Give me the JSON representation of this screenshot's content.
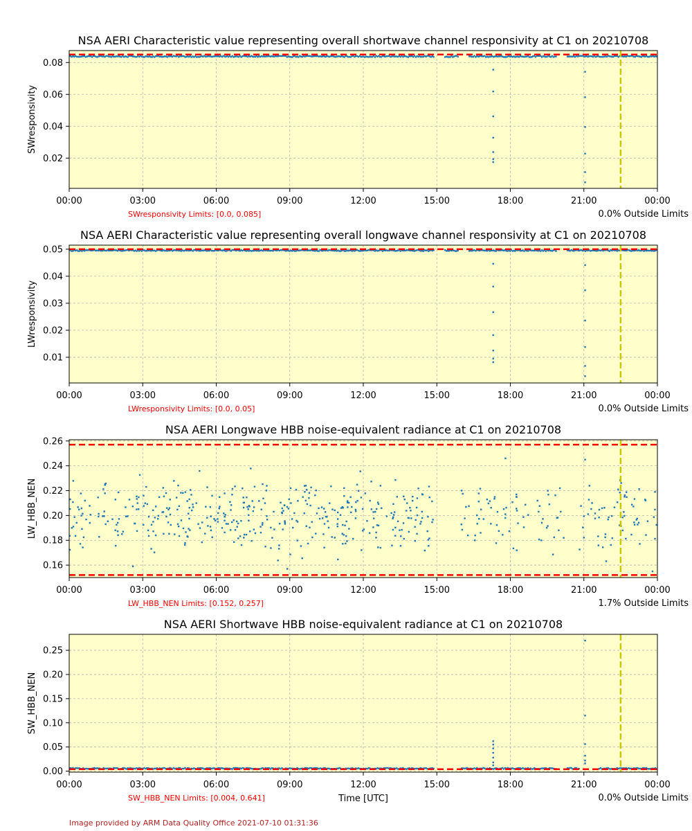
{
  "figure": {
    "xlabel": "Time [UTC]",
    "credit": "Image provided by ARM Data Quality Office 2021-07-10 01:31:36"
  },
  "colors": {
    "background": "#ffffcc",
    "points": "#1f77b4",
    "limit_line": "#ff0000",
    "marker_line": "#c8c800",
    "grid": "#b0b0b0",
    "limit_text": "#ff0000",
    "credit_text": "#b22222"
  },
  "chart_data": [
    {
      "type": "scatter",
      "title": "NSA AERI Characteristic value representing overall shortwave channel responsivity at C1 on 20210708",
      "ylabel": "SWresponsivity",
      "xlim": [
        0,
        24
      ],
      "ylim": [
        0.001,
        0.0875
      ],
      "x_tick_labels": [
        "00:00",
        "03:00",
        "06:00",
        "09:00",
        "12:00",
        "15:00",
        "18:00",
        "21:00",
        "00:00"
      ],
      "y_ticks": [
        0.02,
        0.04,
        0.06,
        0.08
      ],
      "y_tick_labels": [
        "0.02",
        "0.04",
        "0.06",
        "0.08"
      ],
      "limits": [
        0.0,
        0.085
      ],
      "limits_text": "SWresponsivity Limits: [0.0, 0.085]",
      "outside_text": "0.0% Outside Limits",
      "marker_x": 22.5,
      "grid": true,
      "baseline": 0.0838,
      "baseline_jitter": 0.0004,
      "baseline_gaps": [
        [
          14.9,
          15.3
        ],
        [
          15.9,
          16.3
        ],
        [
          19.9,
          20.3
        ]
      ],
      "outliers": [
        [
          17.3,
          0.0755
        ],
        [
          17.3,
          0.0618
        ],
        [
          17.3,
          0.0462
        ],
        [
          17.3,
          0.0328
        ],
        [
          17.3,
          0.0238
        ],
        [
          17.3,
          0.0193
        ],
        [
          17.3,
          0.0175
        ],
        [
          21.05,
          0.0742
        ],
        [
          21.05,
          0.0582
        ],
        [
          21.05,
          0.0395
        ],
        [
          21.05,
          0.0228
        ],
        [
          21.05,
          0.0112
        ],
        [
          21.05,
          0.0048
        ]
      ],
      "noise": null
    },
    {
      "type": "scatter",
      "title": "NSA AERI Characteristic value representing overall longwave channel responsivity at C1 on 20210708",
      "ylabel": "LWresponsivity",
      "xlim": [
        0,
        24
      ],
      "ylim": [
        0.0005,
        0.0515
      ],
      "x_tick_labels": [
        "00:00",
        "03:00",
        "06:00",
        "09:00",
        "12:00",
        "15:00",
        "18:00",
        "21:00",
        "00:00"
      ],
      "y_ticks": [
        0.01,
        0.02,
        0.03,
        0.04,
        0.05
      ],
      "y_tick_labels": [
        "0.01",
        "0.02",
        "0.03",
        "0.04",
        "0.05"
      ],
      "limits": [
        0.0,
        0.05
      ],
      "limits_text": "LWresponsivity Limits: [0.0, 0.05]",
      "outside_text": "0.0% Outside Limits",
      "marker_x": 22.5,
      "grid": true,
      "baseline": 0.0495,
      "baseline_jitter": 0.0002,
      "baseline_gaps": [
        [
          14.9,
          15.3
        ],
        [
          15.9,
          16.3
        ],
        [
          19.9,
          20.3
        ]
      ],
      "outliers": [
        [
          17.3,
          0.0446
        ],
        [
          17.3,
          0.0362
        ],
        [
          17.3,
          0.0267
        ],
        [
          17.3,
          0.0182
        ],
        [
          17.3,
          0.0125
        ],
        [
          17.3,
          0.0095
        ],
        [
          17.3,
          0.0082
        ],
        [
          21.05,
          0.0441
        ],
        [
          21.05,
          0.0348
        ],
        [
          21.05,
          0.0236
        ],
        [
          21.05,
          0.0138
        ],
        [
          21.05,
          0.0068
        ],
        [
          21.05,
          0.003
        ]
      ],
      "noise": null
    },
    {
      "type": "scatter",
      "title": "NSA AERI Longwave HBB noise-equivalent radiance at C1 on 20210708",
      "ylabel": "LW_HBB_NEN",
      "xlim": [
        0,
        24
      ],
      "ylim": [
        0.15,
        0.261
      ],
      "x_tick_labels": [
        "00:00",
        "03:00",
        "06:00",
        "09:00",
        "12:00",
        "15:00",
        "18:00",
        "21:00",
        "00:00"
      ],
      "y_ticks": [
        0.16,
        0.18,
        0.2,
        0.22,
        0.24,
        0.26
      ],
      "y_tick_labels": [
        "0.16",
        "0.18",
        "0.20",
        "0.22",
        "0.24",
        "0.26"
      ],
      "limits": [
        0.152,
        0.257
      ],
      "limits_text": "LW_HBB_NEN Limits: [0.152, 0.257]",
      "outside_text": "1.7% Outside Limits",
      "marker_x": 22.5,
      "grid": true,
      "baseline": null,
      "outliers": [],
      "noise": {
        "center": 0.2,
        "spread": 0.043,
        "segments": [
          [
            0.0,
            14.9,
            420
          ],
          [
            16.0,
            20.2,
            70
          ],
          [
            20.8,
            24.0,
            65
          ]
        ],
        "extra_points": [
          [
            23.8,
            0.155
          ],
          [
            8.9,
            0.157
          ],
          [
            2.6,
            0.159
          ],
          [
            21.05,
            0.245
          ],
          [
            17.8,
            0.246
          ]
        ]
      }
    },
    {
      "type": "scatter",
      "title": "NSA AERI Shortwave HBB noise-equivalent radiance at C1 on 20210708",
      "ylabel": "SW_HBB_NEN",
      "xlim": [
        0,
        24
      ],
      "ylim": [
        -0.002,
        0.283
      ],
      "x_tick_labels": [
        "00:00",
        "03:00",
        "06:00",
        "09:00",
        "12:00",
        "15:00",
        "18:00",
        "21:00",
        "00:00"
      ],
      "y_ticks": [
        0.0,
        0.05,
        0.1,
        0.15,
        0.2,
        0.25
      ],
      "y_tick_labels": [
        "0.00",
        "0.05",
        "0.10",
        "0.15",
        "0.20",
        "0.25"
      ],
      "limits": [
        0.004,
        0.641
      ],
      "limits_text": "SW_HBB_NEN Limits: [0.004, 0.641]",
      "outside_text": "0.0% Outside Limits",
      "marker_x": 22.5,
      "grid": true,
      "baseline": 0.0055,
      "baseline_jitter": 0.0012,
      "baseline_gaps": [
        [
          14.9,
          16.0
        ],
        [
          19.9,
          20.3
        ],
        [
          20.8,
          21.6
        ]
      ],
      "outliers": [
        [
          17.3,
          0.062
        ],
        [
          17.3,
          0.055
        ],
        [
          17.3,
          0.047
        ],
        [
          17.3,
          0.038
        ],
        [
          17.3,
          0.028
        ],
        [
          17.3,
          0.018
        ],
        [
          17.3,
          0.012
        ],
        [
          21.05,
          0.27
        ],
        [
          21.05,
          0.115
        ],
        [
          21.05,
          0.056
        ],
        [
          21.05,
          0.032
        ],
        [
          21.05,
          0.022
        ],
        [
          21.05,
          0.016
        ]
      ],
      "noise": null
    }
  ]
}
